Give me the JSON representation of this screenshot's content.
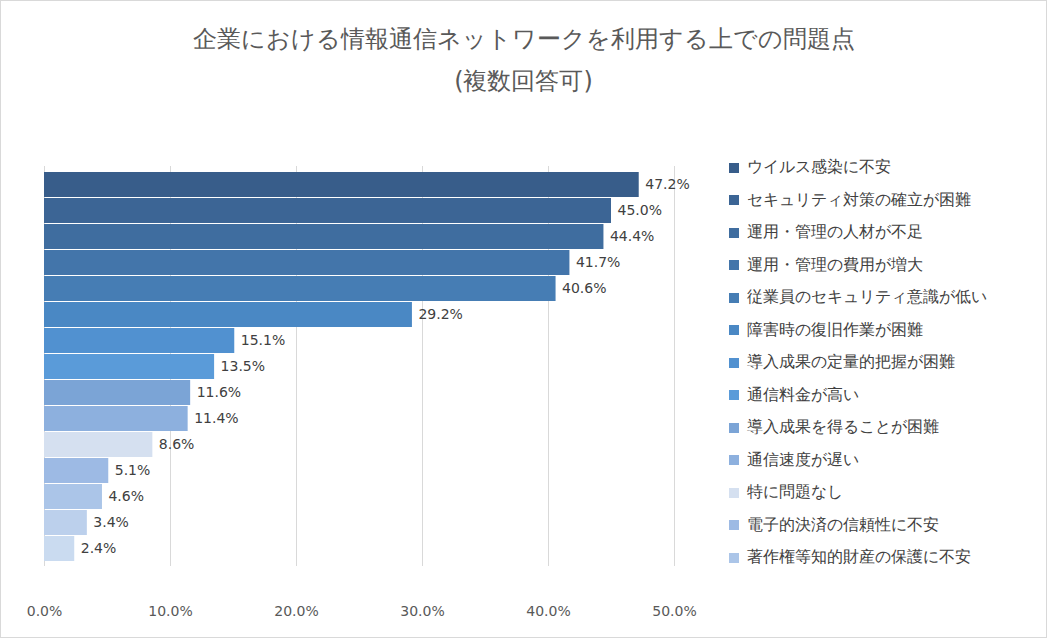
{
  "chart_data": {
    "type": "bar",
    "title": "企業における情報通信ネットワークを利用する上での問題点",
    "subtitle": "(複数回答可)",
    "orientation": "horizontal",
    "categories": [
      "ウイルス感染に不安",
      "セキュリティ対策の確立が困難",
      "運用・管理の人材が不足",
      "運用・管理の費用が増大",
      "従業員のセキュリティ意識が低い",
      "障害時の復旧作業が困難",
      "導入成果の定量的把握が困難",
      "通信料金が高い",
      "導入成果を得ることが困難",
      "通信速度が遅い",
      "特に問題なし",
      "電子的決済の信頼性に不安",
      "著作権等知的財産の保護に不安",
      null,
      null
    ],
    "values": [
      47.2,
      45.0,
      44.4,
      41.7,
      40.6,
      29.2,
      15.1,
      13.5,
      11.6,
      11.4,
      8.6,
      5.1,
      4.6,
      3.4,
      2.4
    ],
    "value_labels": [
      "47.2%",
      "45.0%",
      "44.4%",
      "41.7%",
      "40.6%",
      "29.2%",
      "15.1%",
      "13.5%",
      "11.6%",
      "11.4%",
      "8.6%",
      "5.1%",
      "4.6%",
      "3.4%",
      "2.4%"
    ],
    "colors": [
      "#385d8a",
      "#3c6595",
      "#3f6d9f",
      "#4375aa",
      "#467db4",
      "#4a88c4",
      "#5191d0",
      "#5a9bd9",
      "#7ba4d6",
      "#8db0de",
      "#d5e0f0",
      "#9dbae4",
      "#abc5e8",
      "#bcd0ec",
      "#cadbf0"
    ],
    "xlim": [
      0,
      50
    ],
    "xticks": [
      {
        "value": 0,
        "label": "0.0%"
      },
      {
        "value": 10,
        "label": "10.0%"
      },
      {
        "value": 20,
        "label": "20.0%"
      },
      {
        "value": 30,
        "label": "30.0%"
      },
      {
        "value": 40,
        "label": "40.0%"
      },
      {
        "value": 50,
        "label": "50.0%"
      }
    ],
    "grid": true,
    "data_labels": true,
    "tick_labels": "x",
    "legend": "right"
  }
}
